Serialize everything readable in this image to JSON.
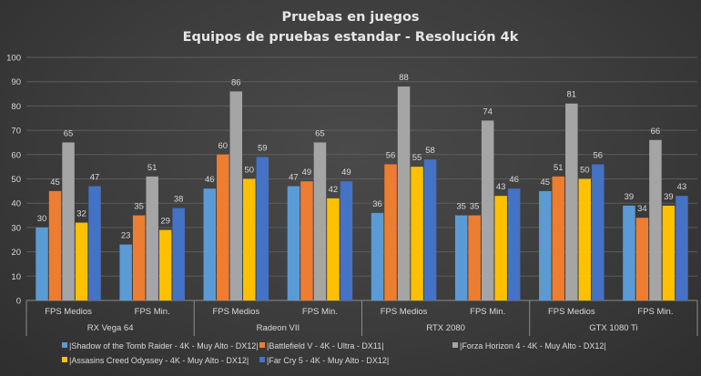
{
  "chart_data": {
    "type": "bar",
    "title": "Pruebas en juegos",
    "subtitle": "Equipos de pruebas estandar - Resolución 4k",
    "ylim": [
      0,
      100
    ],
    "yticks": [
      "0",
      "10",
      "20",
      "30",
      "40",
      "50",
      "60",
      "70",
      "80",
      "90",
      "100"
    ],
    "grid": true,
    "legend_position": "bottom",
    "groups": [
      {
        "name": "RX Vega 64",
        "categories": [
          "FPS Medios",
          "FPS Min."
        ]
      },
      {
        "name": "Radeon VII",
        "categories": [
          "FPS Medios",
          "FPS Min."
        ]
      },
      {
        "name": "RTX 2080",
        "categories": [
          "FPS Medios",
          "FPS Min."
        ]
      },
      {
        "name": "GTX 1080 Ti",
        "categories": [
          "FPS Medios",
          "FPS Min."
        ]
      }
    ],
    "series": [
      {
        "name": "|Shadow of the Tomb Raider - 4K - Muy Alto - DX12|",
        "color": "#5b9bd5",
        "values": [
          30,
          23,
          46,
          47,
          36,
          35,
          45,
          39
        ]
      },
      {
        "name": "|Battlefield V - 4K - Ultra - DX11|",
        "color": "#ed7d31",
        "values": [
          45,
          35,
          60,
          49,
          56,
          35,
          51,
          34
        ]
      },
      {
        "name": "|Forza Horizon 4 - 4K - Muy Alto - DX12|",
        "color": "#a5a5a5",
        "values": [
          65,
          51,
          86,
          65,
          88,
          74,
          81,
          66
        ]
      },
      {
        "name": "|Assasins Creed Odyssey - 4K - Muy Alto - DX12|",
        "color": "#ffc000",
        "values": [
          32,
          29,
          50,
          42,
          55,
          43,
          50,
          39
        ]
      },
      {
        "name": "|Far Cry 5 - 4K - Muy Alto - DX12|",
        "color": "#4472c4",
        "values": [
          47,
          38,
          59,
          49,
          58,
          46,
          56,
          43
        ]
      }
    ]
  }
}
